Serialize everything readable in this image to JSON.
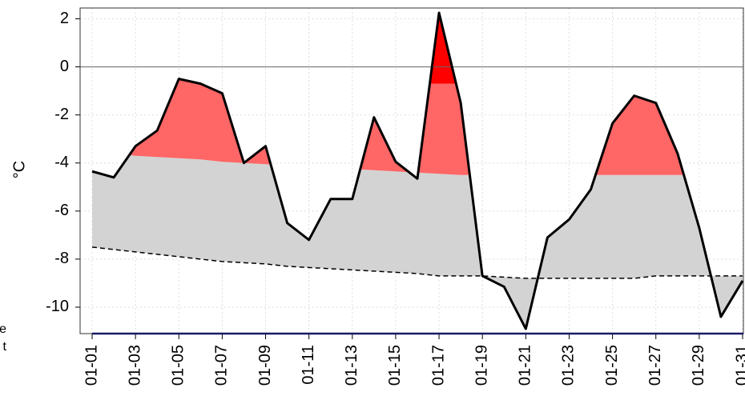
{
  "chart_data": {
    "type": "band_line",
    "y_label": "°C",
    "clipped_text": [
      "e",
      "t"
    ],
    "categories": [
      "01-01",
      null,
      "01-03",
      null,
      "01-05",
      null,
      "01-07",
      null,
      "01-09",
      null,
      "01-11",
      null,
      "01-13",
      null,
      "01-15",
      null,
      "01-17",
      null,
      "01-19",
      null,
      "01-21",
      null,
      "01-23",
      null,
      "01-25",
      null,
      "01-27",
      null,
      "01-29",
      null,
      "01-31"
    ],
    "line": {
      "color": "#000000",
      "values": [
        -4.35,
        -4.6,
        -3.3,
        -2.65,
        -0.5,
        -0.7,
        -1.1,
        -4.0,
        -3.3,
        -6.5,
        -7.2,
        -5.5,
        -5.5,
        -2.1,
        -3.95,
        -4.65,
        2.25,
        -1.5,
        -8.7,
        -9.15,
        -10.9,
        -7.1,
        -6.35,
        -5.1,
        -2.35,
        -1.2,
        -1.5,
        -3.6,
        -6.7,
        -10.4,
        -8.9
      ]
    },
    "upper": {
      "color": "#ff6666",
      "values": [
        -3.5,
        -3.6,
        -3.7,
        -3.75,
        -3.8,
        -3.85,
        -3.95,
        -4.0,
        -4.05,
        -4.1,
        -4.15,
        -4.2,
        -4.25,
        -4.3,
        -4.35,
        -4.4,
        -4.45,
        -4.5,
        -4.5,
        -4.5,
        -4.5,
        -4.5,
        -4.5,
        -4.5,
        -4.5,
        -4.5,
        -4.5,
        -4.5,
        -4.5,
        -4.5,
        -4.5
      ]
    },
    "extreme": {
      "color": "#ff0000",
      "values": [
        0,
        0,
        0,
        0,
        0,
        0,
        0,
        0,
        0,
        0,
        0,
        0,
        -0.7,
        -0.7,
        -0.7,
        -0.7,
        -0.7,
        -0.7,
        -0.7,
        -0.7,
        -0.7,
        -0.7,
        -0.7,
        -0.7,
        -0.7,
        -0.7,
        -0.7,
        -0.7,
        -0.7,
        -0.7,
        -0.7
      ]
    },
    "lower": {
      "color": "#d3d3d3",
      "values": [
        -7.5,
        -7.6,
        -7.7,
        -7.8,
        -7.9,
        -8.0,
        -8.1,
        -8.15,
        -8.2,
        -8.3,
        -8.35,
        -8.4,
        -8.45,
        -8.5,
        -8.55,
        -8.6,
        -8.7,
        -8.7,
        -8.7,
        -8.75,
        -8.8,
        -8.8,
        -8.8,
        -8.8,
        -8.8,
        -8.8,
        -8.7,
        -8.7,
        -8.7,
        -8.7,
        -8.7
      ]
    },
    "ylim": [
      -11.1,
      2.45
    ],
    "yticks": [
      2,
      0,
      -2,
      -4,
      -6,
      -8,
      -10
    ],
    "grid": true
  }
}
